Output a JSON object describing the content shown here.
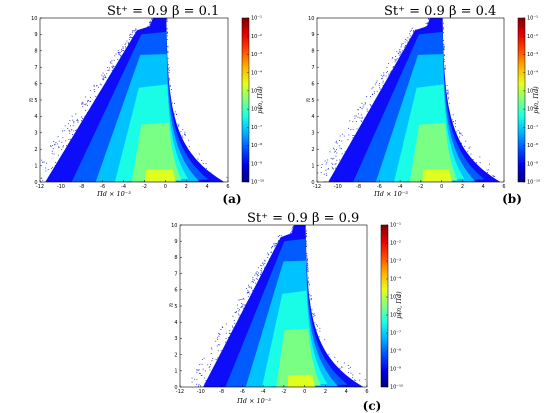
{
  "chart_data": [
    {
      "type": "heatmap",
      "title": "St⁺ = 0.9   β = 0.1",
      "xlabel": "Πd × 10⁻³",
      "ylabel": "n",
      "colorbar_label": "p(n, Πd)",
      "panel_label": "(a)",
      "xlim": [
        -12,
        6
      ],
      "ylim": [
        0,
        10
      ],
      "xticks": [
        "-12",
        "-10",
        "-8",
        "-6",
        "-4",
        "-2",
        "0",
        "2",
        "4",
        "6"
      ],
      "yticks": [
        "0",
        "1",
        "2",
        "3",
        "4",
        "5",
        "6",
        "7",
        "8",
        "9",
        "10"
      ],
      "colorbar_ticks": [
        "10⁻¹⁰",
        "10⁻⁹",
        "10⁻⁸",
        "10⁻⁷",
        "10⁻⁶",
        "10⁻⁵",
        "10⁻⁴",
        "10⁻³",
        "10⁻²",
        "10⁻¹"
      ],
      "colorbar_range_log10": [
        -10,
        -1
      ],
      "colormap": "jet",
      "spread_left": 1.0
    },
    {
      "type": "heatmap",
      "title": "St⁺ = 0.9   β = 0.4",
      "xlabel": "Πd × 10⁻³",
      "ylabel": "n",
      "colorbar_label": "p(n, Πd)",
      "panel_label": "(b)",
      "xlim": [
        -12,
        6
      ],
      "ylim": [
        0,
        10
      ],
      "xticks": [
        "-12",
        "-10",
        "-8",
        "-6",
        "-4",
        "-2",
        "0",
        "2",
        "4",
        "6"
      ],
      "yticks": [
        "0",
        "1",
        "2",
        "3",
        "4",
        "5",
        "6",
        "7",
        "8",
        "9",
        "10"
      ],
      "colorbar_ticks": [
        "10⁻¹⁰",
        "10⁻⁹",
        "10⁻⁸",
        "10⁻⁷",
        "10⁻⁶",
        "10⁻⁵",
        "10⁻⁴",
        "10⁻³",
        "10⁻²",
        "10⁻¹"
      ],
      "colorbar_range_log10": [
        -10,
        -1
      ],
      "colormap": "jet",
      "spread_left": 0.95
    },
    {
      "type": "heatmap",
      "title": "St⁺ = 0.9   β = 0.9",
      "xlabel": "Πd × 10⁻³",
      "ylabel": "n",
      "colorbar_label": "p(n, Πd)",
      "panel_label": "(c)",
      "xlim": [
        -12,
        6
      ],
      "ylim": [
        0,
        10
      ],
      "xticks": [
        "-12",
        "-10",
        "-8",
        "-6",
        "-4",
        "-2",
        "0",
        "2",
        "4",
        "6"
      ],
      "yticks": [
        "0",
        "1",
        "2",
        "3",
        "4",
        "5",
        "6",
        "7",
        "8",
        "9",
        "10"
      ],
      "colorbar_ticks": [
        "10⁻¹⁰",
        "10⁻⁹",
        "10⁻⁸",
        "10⁻⁷",
        "10⁻⁶",
        "10⁻⁵",
        "10⁻⁴",
        "10⁻³",
        "10⁻²",
        "10⁻¹"
      ],
      "colorbar_range_log10": [
        -10,
        -1
      ],
      "colormap": "jet",
      "spread_left": 0.85
    }
  ]
}
